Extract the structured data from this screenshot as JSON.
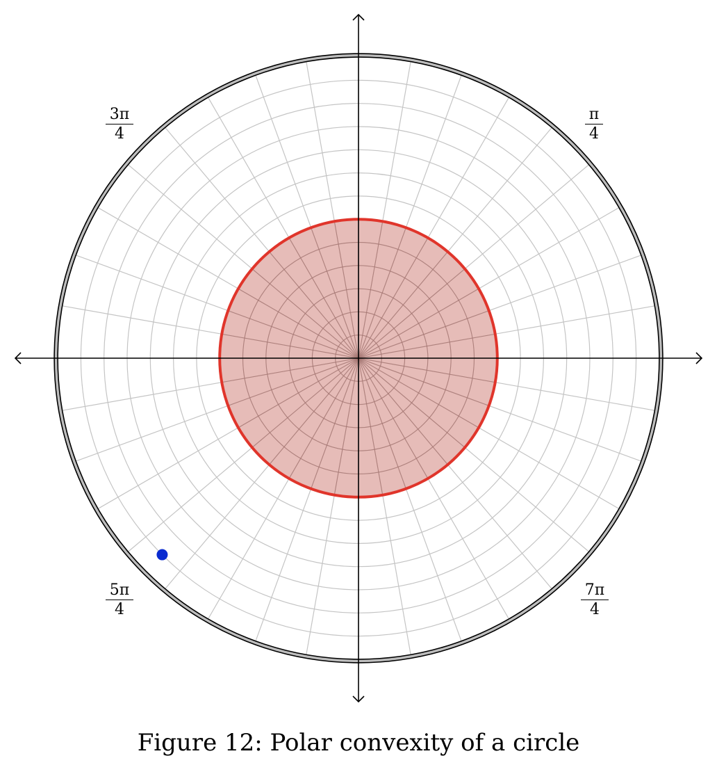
{
  "caption": "Figure 12: Polar convexity of a circle",
  "angle_labels": [
    {
      "num": "π",
      "den": "4",
      "angle": "π/4"
    },
    {
      "num": "3π",
      "den": "4",
      "angle": "3π/4"
    },
    {
      "num": "5π",
      "den": "4",
      "angle": "5π/4"
    },
    {
      "num": "7π",
      "den": "4",
      "angle": "7π/4"
    }
  ],
  "diagram": {
    "grid_rings": 13,
    "grid_spokes": 36,
    "outer_radius_units": 13,
    "circle": {
      "center_r": 0,
      "radius_units": 6
    },
    "point": {
      "r_units": 12,
      "theta_deg": 225
    },
    "colors": {
      "grid": "#c4c4c4",
      "axis": "#000000",
      "circle_stroke": "#e0352b",
      "circle_fill": "#c86a62",
      "point": "#0a2bd0",
      "outer_ring": "#bdbdbd"
    }
  }
}
